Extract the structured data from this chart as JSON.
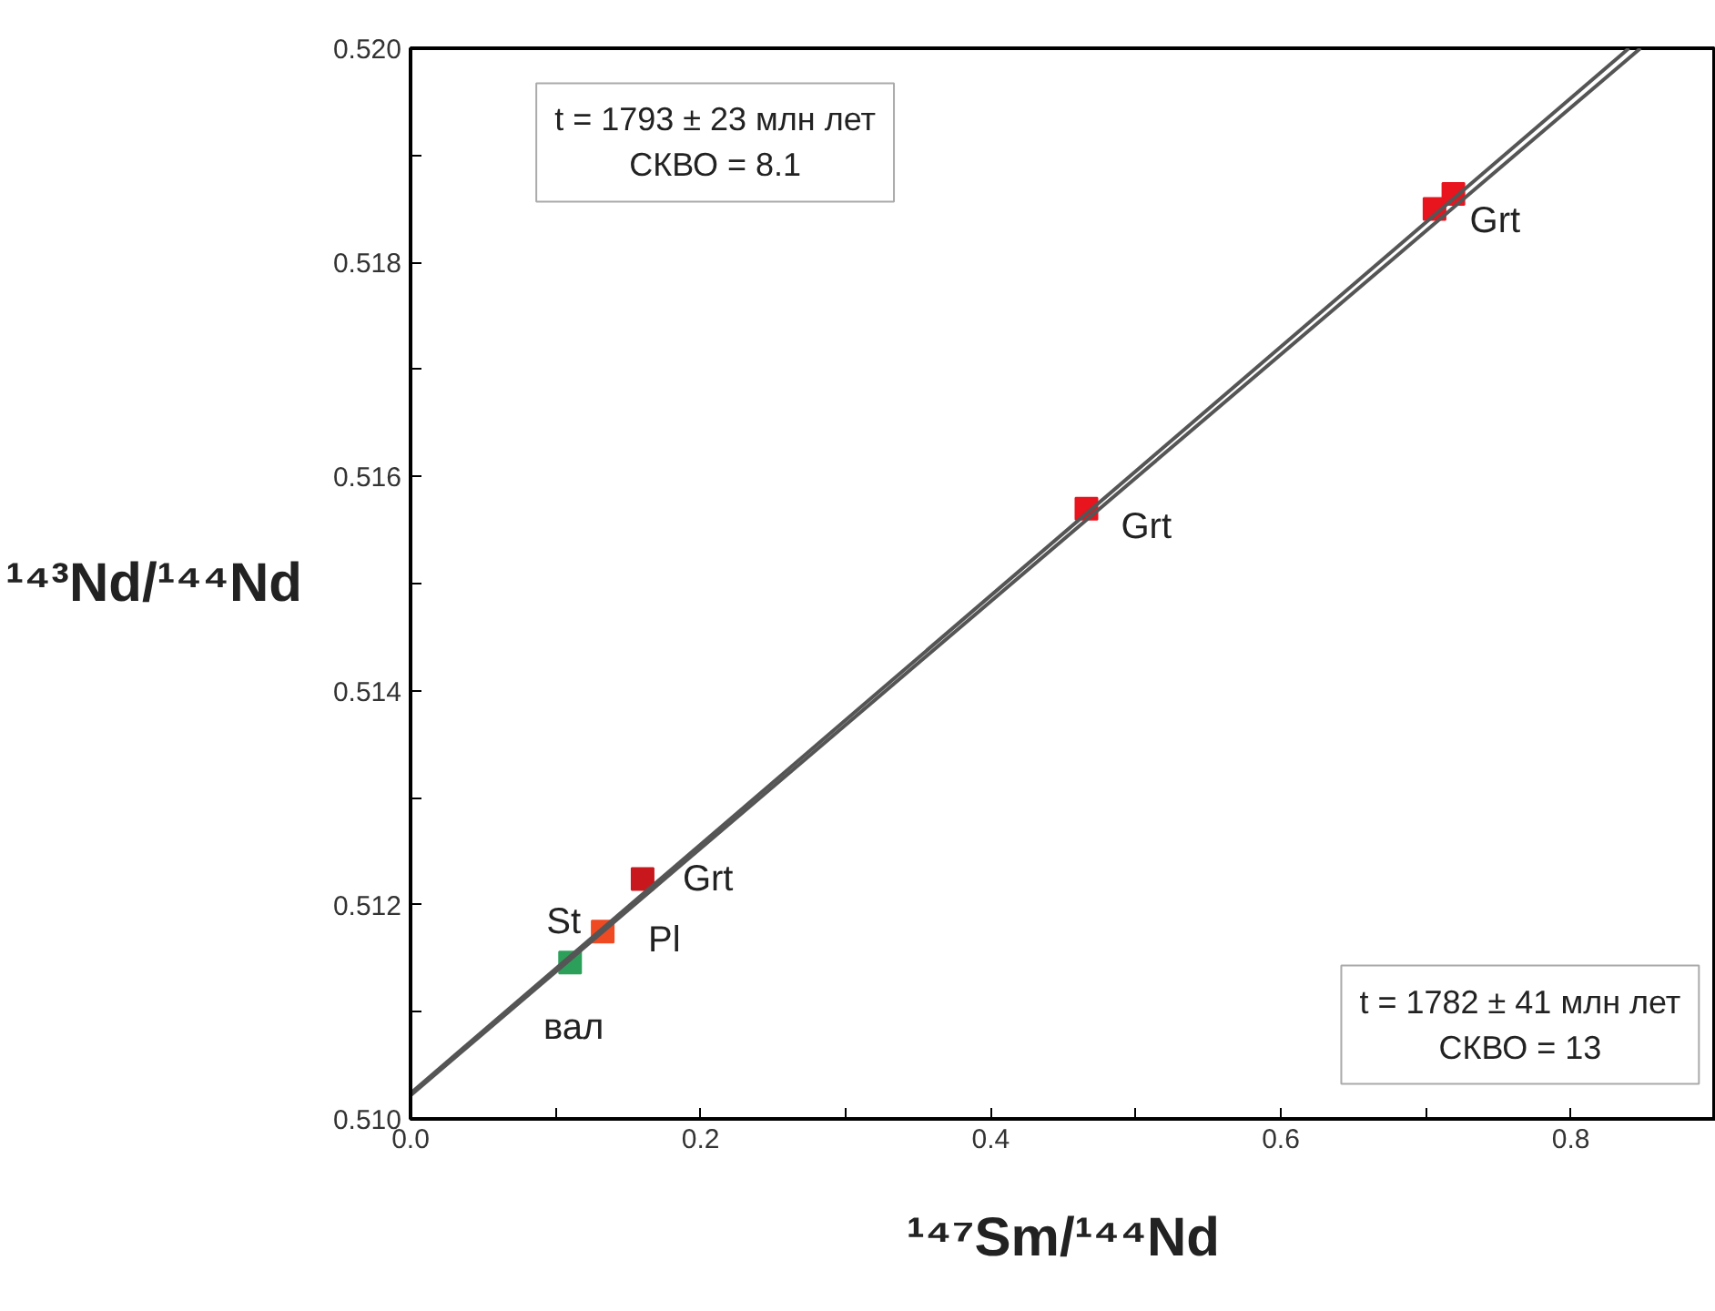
{
  "chart_data": {
    "type": "scatter",
    "xlabel": "¹⁴⁷Sm/¹⁴⁴Nd",
    "ylabel": "¹⁴³Nd/¹⁴⁴Nd",
    "xlim": [
      0,
      0.9
    ],
    "ylim": [
      0.51,
      0.52
    ],
    "xticks": [
      {
        "value": 0,
        "label": "0.0"
      },
      {
        "value": 0.1,
        "label": null
      },
      {
        "value": 0.2,
        "label": "0.2"
      },
      {
        "value": 0.3,
        "label": null
      },
      {
        "value": 0.4,
        "label": "0.4"
      },
      {
        "value": 0.5,
        "label": null
      },
      {
        "value": 0.6,
        "label": "0.6"
      },
      {
        "value": 0.7,
        "label": null
      },
      {
        "value": 0.8,
        "label": "0.8"
      }
    ],
    "yticks": [
      {
        "value": 0.51,
        "label": "0.510"
      },
      {
        "value": 0.511,
        "label": null
      },
      {
        "value": 0.512,
        "label": "0.512"
      },
      {
        "value": 0.513,
        "label": null
      },
      {
        "value": 0.514,
        "label": "0.514"
      },
      {
        "value": 0.515,
        "label": null
      },
      {
        "value": 0.516,
        "label": "0.516"
      },
      {
        "value": 0.517,
        "label": null
      },
      {
        "value": 0.518,
        "label": "0.518"
      },
      {
        "value": 0.519,
        "label": null
      },
      {
        "value": 0.52,
        "label": "0.520"
      }
    ],
    "grid": false,
    "series": [
      {
        "marker": "square",
        "x": [
          0.11,
          0.1325,
          0.16,
          0.466,
          0.706,
          0.719
        ],
        "values": [
          0.51146,
          0.51175,
          0.51224,
          0.5157,
          0.5185,
          0.51864
        ],
        "colors": [
          "#2ca05a",
          "#f04a23",
          "#c8181e",
          "#e8141e",
          "#e8141e",
          "#e8141e"
        ]
      },
      {
        "type": "line",
        "color": "#555555",
        "x": [
          0,
          0.84
        ],
        "values": [
          0.51024,
          0.52
        ]
      },
      {
        "type": "line",
        "color": "#555555",
        "x": [
          0,
          0.848
        ],
        "values": [
          0.51022,
          0.52
        ]
      }
    ],
    "annotations": [
      "t = 1793 ± 23 млн лет\nСКВО = 8.1",
      "t = 1782 ± 41 млн лет\nСКВО = 13",
      {
        "text": "вал",
        "x": 0.11,
        "y": 0.51146
      },
      {
        "text": "St",
        "x": 0.1325,
        "y": 0.51175
      },
      {
        "text": "Pl",
        "x": 0.1325,
        "y": 0.51175
      },
      {
        "text": "Grt",
        "x": 0.16,
        "y": 0.51224
      },
      {
        "text": "Grt",
        "x": 0.466,
        "y": 0.5157
      },
      {
        "text": "Grt",
        "x": 0.719,
        "y": 0.51864
      }
    ]
  }
}
